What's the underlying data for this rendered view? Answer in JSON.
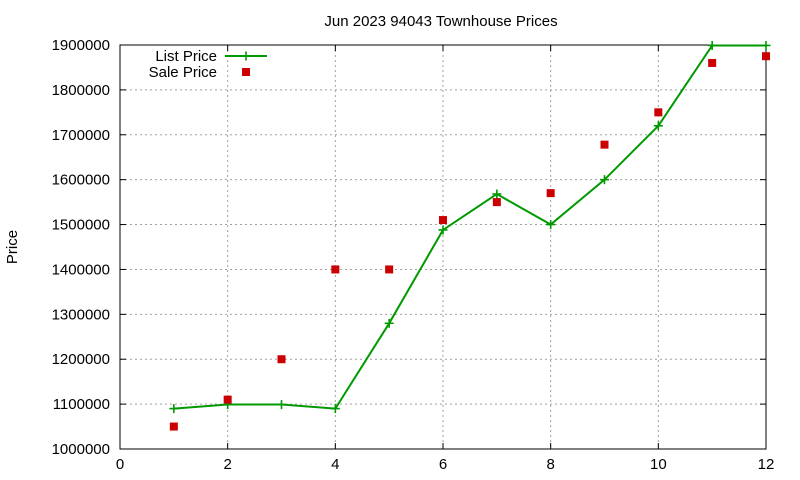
{
  "chart_data": {
    "type": "line",
    "title": "Jun 2023 94043 Townhouse Prices",
    "xlabel": "",
    "ylabel": "Price",
    "xlim": [
      0,
      12
    ],
    "ylim": [
      1000000,
      1900000
    ],
    "x_ticks": [
      0,
      2,
      4,
      6,
      8,
      10,
      12
    ],
    "y_ticks": [
      1000000,
      1100000,
      1200000,
      1300000,
      1400000,
      1500000,
      1600000,
      1700000,
      1800000,
      1900000
    ],
    "grid": true,
    "legend_position": "top-left",
    "series": [
      {
        "name": "List Price",
        "type": "line",
        "marker": "plus",
        "color": "#009900",
        "x": [
          1,
          2,
          3,
          4,
          5,
          6,
          7,
          8,
          9,
          10,
          11,
          12
        ],
        "values": [
          1090000,
          1099000,
          1099000,
          1090000,
          1280000,
          1488000,
          1568000,
          1500000,
          1600000,
          1720000,
          1899000,
          1899000
        ]
      },
      {
        "name": "Sale Price",
        "type": "scatter",
        "marker": "square",
        "color": "#cc0000",
        "x": [
          1,
          2,
          3,
          4,
          5,
          6,
          7,
          8,
          9,
          10,
          11,
          12
        ],
        "values": [
          1050000,
          1110000,
          1200000,
          1400000,
          1400000,
          1510000,
          1550000,
          1570000,
          1678000,
          1750000,
          1860000,
          1875000
        ]
      }
    ]
  }
}
